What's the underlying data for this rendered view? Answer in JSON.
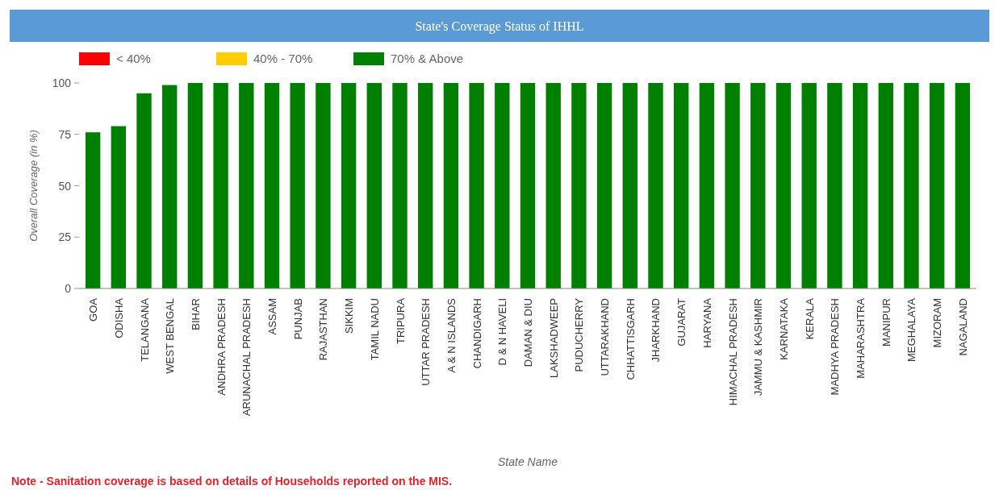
{
  "chart_data": {
    "type": "bar",
    "title": "State's Coverage Status of IHHL",
    "xlabel": "State Name",
    "ylabel": "Overall Coverage (in %)",
    "categories": [
      "GOA",
      "ODISHA",
      "TELANGANA",
      "WEST BENGAL",
      "BIHAR",
      "ANDHRA PRADESH",
      "ARUNACHAL PRADESH",
      "ASSAM",
      "PUNJAB",
      "RAJASTHAN",
      "SIKKIM",
      "TAMIL NADU",
      "TRIPURA",
      "UTTAR PRADESH",
      "A & N ISLANDS",
      "CHANDIGARH",
      "D & N HAVELI",
      "DAMAN & DIU",
      "LAKSHADWEEP",
      "PUDUCHERRY",
      "UTTARAKHAND",
      "CHHATTISGARH",
      "JHARKHAND",
      "GUJARAT",
      "HARYANA",
      "HIMACHAL PRADESH",
      "JAMMU & KASHMIR",
      "KARNATAKA",
      "KERALA",
      "MADHYA PRADESH",
      "MAHARASHTRA",
      "MANIPUR",
      "MEGHALAYA",
      "MIZORAM",
      "NAGALAND"
    ],
    "series": [
      {
        "name": "< 40%",
        "color": "#ff0000",
        "values": [
          null,
          null,
          null,
          null,
          null,
          null,
          null,
          null,
          null,
          null,
          null,
          null,
          null,
          null,
          null,
          null,
          null,
          null,
          null,
          null,
          null,
          null,
          null,
          null,
          null,
          null,
          null,
          null,
          null,
          null,
          null,
          null,
          null,
          null,
          null
        ]
      },
      {
        "name": "40% - 70%",
        "color": "#ffcc00",
        "values": [
          null,
          null,
          null,
          null,
          null,
          null,
          null,
          null,
          null,
          null,
          null,
          null,
          null,
          null,
          null,
          null,
          null,
          null,
          null,
          null,
          null,
          null,
          null,
          null,
          null,
          null,
          null,
          null,
          null,
          null,
          null,
          null,
          null,
          null,
          null
        ]
      },
      {
        "name": "70% & Above",
        "color": "#008000",
        "values": [
          76,
          79,
          95,
          99,
          100,
          100,
          100,
          100,
          100,
          100,
          100,
          100,
          100,
          100,
          100,
          100,
          100,
          100,
          100,
          100,
          100,
          100,
          100,
          100,
          100,
          100,
          100,
          100,
          100,
          100,
          100,
          100,
          100,
          100,
          100
        ]
      }
    ],
    "ylim": [
      0,
      100
    ],
    "yticks": [
      0,
      25,
      50,
      75,
      100
    ],
    "legend": "top left",
    "annotations": [
      "Note - Sanitation coverage is based on details of Households reported on the MIS."
    ]
  }
}
